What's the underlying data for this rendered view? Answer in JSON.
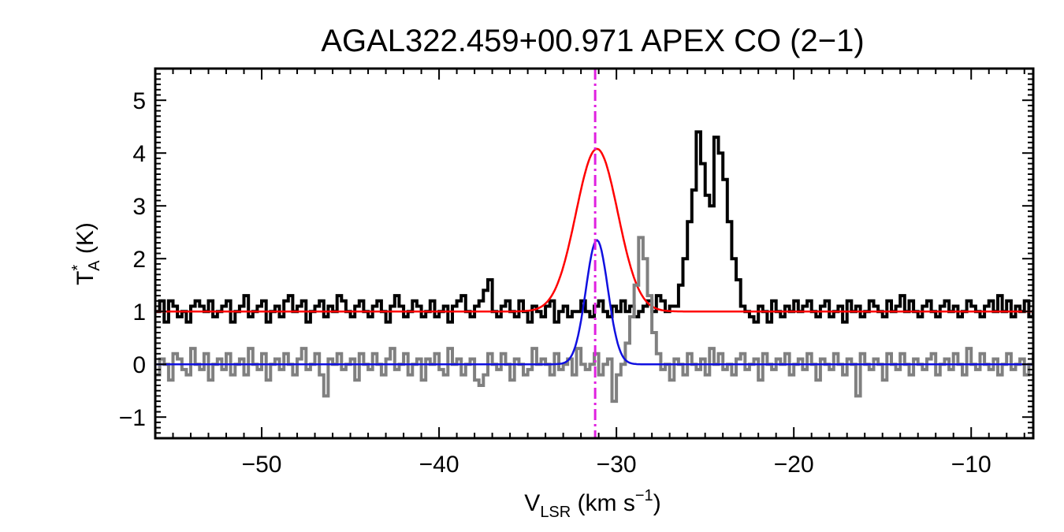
{
  "chart_data": {
    "type": "line",
    "title": "AGAL322.459+00.971   APEX CO (2−1)",
    "xlabel": {
      "main": "V",
      "sub": "LSR",
      "unit_pre": " (km s",
      "sup": "−1",
      "unit_post": ")"
    },
    "ylabel": {
      "main": "T",
      "sup": "*",
      "sub": "A",
      "unit": " (K)"
    },
    "xlim": [
      -56,
      -6.5
    ],
    "ylim": [
      -1.4,
      5.6
    ],
    "xticks": [
      -50,
      -40,
      -30,
      -20,
      -10
    ],
    "xtick_labels": [
      "−50",
      "−40",
      "−30",
      "−20",
      "−10"
    ],
    "yticks": [
      -1,
      0,
      1,
      2,
      3,
      4,
      5
    ],
    "ytick_labels": [
      "−1",
      "0",
      "1",
      "2",
      "3",
      "4",
      "5"
    ],
    "vline": {
      "x": -31.2,
      "color": "#e020e0",
      "style": "dash-dot"
    },
    "series": [
      {
        "kind": "observed-step-offset",
        "color": "#000000",
        "x_start": -56.0,
        "dx": 0.25,
        "values": [
          1.0,
          1.2,
          0.8,
          1.2,
          1.1,
          0.9,
          1.0,
          0.8,
          1.1,
          1.2,
          1.1,
          1.0,
          1.2,
          0.9,
          1.0,
          1.1,
          1.2,
          0.8,
          1.0,
          1.1,
          1.3,
          0.9,
          1.0,
          1.1,
          1.2,
          0.8,
          1.0,
          1.1,
          0.9,
          1.2,
          1.3,
          1.0,
          1.1,
          1.2,
          0.8,
          1.0,
          1.1,
          1.2,
          0.9,
          1.1,
          1.0,
          1.3,
          1.2,
          1.0,
          0.9,
          1.1,
          1.2,
          1.0,
          0.9,
          1.1,
          1.2,
          1.0,
          0.8,
          1.1,
          1.3,
          1.1,
          0.9,
          1.0,
          1.2,
          1.1,
          0.9,
          1.0,
          1.2,
          0.9,
          1.0,
          1.1,
          0.8,
          1.1,
          1.2,
          1.3,
          1.0,
          0.9,
          1.1,
          1.2,
          1.4,
          1.6,
          1.0,
          0.9,
          1.1,
          1.2,
          1.0,
          0.9,
          1.2,
          1.0,
          0.8,
          1.1,
          1.0,
          0.9,
          1.1,
          1.2,
          0.8,
          1.0,
          1.1,
          0.9,
          1.0,
          1.0,
          1.2,
          1.0,
          0.9,
          1.1,
          1.2,
          1.0,
          0.9,
          1.1,
          1.0,
          1.2,
          1.0,
          1.1,
          0.9,
          1.0,
          1.1,
          1.2,
          1.0,
          1.3,
          1.2,
          1.0,
          1.1,
          1.1,
          1.5,
          2.0,
          2.7,
          3.3,
          4.4,
          3.8,
          3.2,
          3.0,
          4.3,
          4.0,
          3.5,
          2.7,
          2.0,
          1.6,
          1.1,
          1.0,
          0.9,
          0.8,
          1.1,
          1.0,
          0.8,
          1.2,
          1.0,
          0.9,
          1.1,
          1.0,
          1.2,
          1.0,
          1.1,
          1.2,
          1.0,
          0.9,
          1.1,
          1.2,
          0.9,
          1.0,
          1.1,
          0.8,
          1.2,
          1.0,
          1.1,
          0.9,
          1.0,
          1.2,
          1.1,
          1.0,
          0.9,
          1.2,
          1.0,
          1.1,
          1.3,
          1.0,
          1.2,
          1.0,
          0.9,
          1.1,
          1.2,
          1.0,
          0.9,
          1.1,
          1.2,
          1.0,
          1.1,
          0.9,
          1.0,
          1.2,
          1.1,
          1.0,
          0.9,
          1.1,
          1.2,
          1.0,
          1.3,
          1.0,
          1.2,
          0.9,
          1.1,
          1.0,
          1.2,
          0.9,
          1.0,
          1.1,
          1.2,
          0.8,
          1.0,
          1.1,
          0.9,
          1.2,
          1.0,
          1.1,
          1.3,
          1.0,
          0.9,
          1.1,
          1.2,
          1.0,
          0.9,
          1.1
        ]
      },
      {
        "kind": "fit",
        "color": "#ff0000",
        "baseline": 1.0,
        "amplitude": 3.08,
        "center": -31.1,
        "sigma": 1.18
      },
      {
        "kind": "residual-step",
        "color": "#808080",
        "x_start": -56.0,
        "dx": 0.25,
        "values": [
          -0.2,
          0.1,
          0.0,
          -0.3,
          0.2,
          0.1,
          -0.1,
          -0.2,
          0.3,
          0.0,
          -0.1,
          0.2,
          -0.3,
          0.0,
          0.1,
          -0.1,
          0.2,
          -0.2,
          0.0,
          0.1,
          -0.2,
          0.3,
          0.0,
          -0.1,
          0.2,
          -0.3,
          0.0,
          0.1,
          -0.1,
          0.2,
          0.0,
          -0.2,
          0.1,
          0.3,
          -0.1,
          0.0,
          0.2,
          -0.2,
          -0.6,
          0.1,
          0.0,
          0.2,
          -0.1,
          0.0,
          0.1,
          -0.3,
          0.2,
          0.0,
          -0.1,
          0.2,
          0.0,
          -0.2,
          0.1,
          0.3,
          -0.1,
          0.0,
          0.2,
          -0.2,
          0.0,
          0.1,
          -0.3,
          0.1,
          0.0,
          0.2,
          -0.1,
          -0.2,
          0.3,
          0.0,
          0.1,
          -0.2,
          0.0,
          0.1,
          -0.3,
          -0.4,
          -0.2,
          0.2,
          0.0,
          -0.1,
          0.2,
          0.0,
          -0.3,
          0.1,
          0.0,
          -0.2,
          -0.1,
          0.3,
          0.0,
          0.1,
          0.0,
          -0.2,
          0.2,
          -0.1,
          0.0,
          0.1,
          -0.2,
          0.3,
          0.0,
          -0.1,
          0.0,
          0.2,
          -0.2,
          0.0,
          0.1,
          -0.7,
          -0.2,
          0.0,
          0.4,
          0.9,
          1.5,
          2.4,
          2.0,
          1.3,
          0.6,
          0.2,
          -0.1,
          0.0,
          -0.3,
          0.1,
          0.0,
          -0.2,
          0.2,
          0.0,
          -0.1,
          0.1,
          -0.2,
          0.3,
          0.0,
          0.2,
          -0.1,
          0.0,
          -0.2,
          0.1,
          0.2,
          -0.1,
          0.0,
          0.1,
          -0.3,
          0.2,
          0.0,
          -0.1,
          0.1,
          0.0,
          0.2,
          -0.2,
          0.0,
          0.1,
          -0.1,
          0.2,
          0.0,
          -0.3,
          0.1,
          0.0,
          -0.1,
          0.2,
          0.0,
          -0.2,
          0.1,
          0.0,
          -0.6,
          0.2,
          0.0,
          -0.1,
          0.1,
          0.0,
          -0.3,
          0.2,
          0.0,
          -0.1,
          0.2,
          0.0,
          -0.2,
          0.1,
          0.0,
          -0.1,
          0.1,
          0.2,
          -0.2,
          0.0,
          0.1,
          -0.1,
          0.2,
          0.0,
          -0.2,
          0.3,
          0.0,
          -0.1,
          0.2,
          0.0,
          -0.1,
          0.1,
          -0.2,
          0.0,
          0.2,
          -0.1,
          0.0,
          0.1,
          -0.2,
          0.0,
          0.2,
          -0.1,
          0.0,
          -0.2,
          0.1,
          0.3,
          -0.1,
          0.0
        ]
      },
      {
        "kind": "fit",
        "color": "#1010e0",
        "baseline": 0.0,
        "amplitude": 2.35,
        "center": -31.1,
        "sigma": 0.62
      }
    ]
  }
}
